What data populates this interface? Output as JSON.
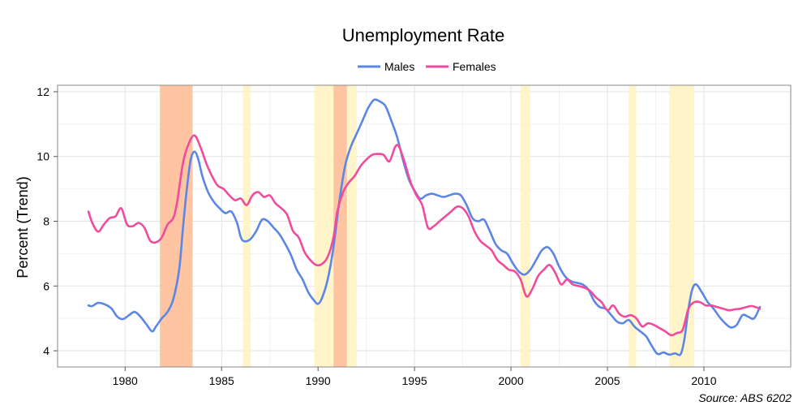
{
  "chart_data": {
    "type": "line",
    "title": "Unemployment Rate",
    "xlabel": "",
    "ylabel": "Percent (Trend)",
    "source": "Source: ABS 6202",
    "xlim": [
      1976.5,
      2014.5
    ],
    "ylim": [
      3.5,
      12.2
    ],
    "x_ticks": [
      1980,
      1985,
      1990,
      1995,
      2000,
      2005,
      2010
    ],
    "y_ticks": [
      4,
      6,
      8,
      10,
      12
    ],
    "grid": true,
    "legend": {
      "position": "top",
      "entries": [
        "Males",
        "Females"
      ]
    },
    "colors": {
      "males": "#5b86e5",
      "females": "#f04b9c",
      "recession_major": "#ffbf99",
      "recession_minor": "#fff3c4"
    },
    "shaded_periods": [
      {
        "start": 1981.8,
        "end": 1983.5,
        "kind": "major"
      },
      {
        "start": 1986.1,
        "end": 1986.5,
        "kind": "minor"
      },
      {
        "start": 1989.8,
        "end": 1990.8,
        "kind": "minor"
      },
      {
        "start": 1990.8,
        "end": 1991.5,
        "kind": "major"
      },
      {
        "start": 1991.5,
        "end": 1992.0,
        "kind": "minor"
      },
      {
        "start": 2000.5,
        "end": 2001.0,
        "kind": "minor"
      },
      {
        "start": 2006.1,
        "end": 2006.5,
        "kind": "minor"
      },
      {
        "start": 2008.2,
        "end": 2009.5,
        "kind": "minor"
      }
    ],
    "series": [
      {
        "name": "Males",
        "color": "#5b86e5",
        "points": [
          [
            1978.1,
            5.4
          ],
          [
            1978.3,
            5.38
          ],
          [
            1978.6,
            5.48
          ],
          [
            1979.0,
            5.42
          ],
          [
            1979.3,
            5.3
          ],
          [
            1979.6,
            5.05
          ],
          [
            1979.9,
            4.98
          ],
          [
            1980.2,
            5.1
          ],
          [
            1980.5,
            5.2
          ],
          [
            1980.8,
            5.05
          ],
          [
            1981.1,
            4.82
          ],
          [
            1981.4,
            4.6
          ],
          [
            1981.6,
            4.75
          ],
          [
            1981.9,
            5.0
          ],
          [
            1982.2,
            5.2
          ],
          [
            1982.5,
            5.6
          ],
          [
            1982.8,
            6.5
          ],
          [
            1983.0,
            7.8
          ],
          [
            1983.2,
            9.0
          ],
          [
            1983.4,
            9.9
          ],
          [
            1983.6,
            10.15
          ],
          [
            1983.8,
            9.9
          ],
          [
            1984.0,
            9.4
          ],
          [
            1984.3,
            8.9
          ],
          [
            1984.6,
            8.6
          ],
          [
            1984.9,
            8.4
          ],
          [
            1985.2,
            8.25
          ],
          [
            1985.5,
            8.3
          ],
          [
            1985.8,
            7.95
          ],
          [
            1986.0,
            7.5
          ],
          [
            1986.2,
            7.38
          ],
          [
            1986.5,
            7.45
          ],
          [
            1986.8,
            7.7
          ],
          [
            1987.1,
            8.05
          ],
          [
            1987.4,
            8.0
          ],
          [
            1987.7,
            7.8
          ],
          [
            1988.0,
            7.6
          ],
          [
            1988.3,
            7.3
          ],
          [
            1988.6,
            6.95
          ],
          [
            1988.9,
            6.5
          ],
          [
            1989.2,
            6.2
          ],
          [
            1989.5,
            5.8
          ],
          [
            1989.8,
            5.55
          ],
          [
            1990.0,
            5.45
          ],
          [
            1990.2,
            5.62
          ],
          [
            1990.5,
            6.2
          ],
          [
            1990.8,
            7.2
          ],
          [
            1991.1,
            8.6
          ],
          [
            1991.4,
            9.7
          ],
          [
            1991.7,
            10.3
          ],
          [
            1992.0,
            10.7
          ],
          [
            1992.3,
            11.1
          ],
          [
            1992.6,
            11.5
          ],
          [
            1992.9,
            11.75
          ],
          [
            1993.2,
            11.7
          ],
          [
            1993.5,
            11.55
          ],
          [
            1993.8,
            11.1
          ],
          [
            1994.1,
            10.6
          ],
          [
            1994.4,
            9.9
          ],
          [
            1994.7,
            9.3
          ],
          [
            1995.0,
            8.95
          ],
          [
            1995.3,
            8.7
          ],
          [
            1995.6,
            8.8
          ],
          [
            1995.9,
            8.85
          ],
          [
            1996.2,
            8.8
          ],
          [
            1996.5,
            8.75
          ],
          [
            1996.8,
            8.8
          ],
          [
            1997.1,
            8.85
          ],
          [
            1997.4,
            8.8
          ],
          [
            1997.7,
            8.5
          ],
          [
            1998.0,
            8.1
          ],
          [
            1998.3,
            8.0
          ],
          [
            1998.6,
            8.05
          ],
          [
            1998.9,
            7.7
          ],
          [
            1999.2,
            7.3
          ],
          [
            1999.5,
            7.1
          ],
          [
            1999.8,
            7.0
          ],
          [
            2000.1,
            6.7
          ],
          [
            2000.4,
            6.45
          ],
          [
            2000.7,
            6.35
          ],
          [
            2001.0,
            6.5
          ],
          [
            2001.3,
            6.8
          ],
          [
            2001.6,
            7.1
          ],
          [
            2001.9,
            7.2
          ],
          [
            2002.2,
            7.0
          ],
          [
            2002.5,
            6.6
          ],
          [
            2002.8,
            6.3
          ],
          [
            2003.1,
            6.15
          ],
          [
            2003.4,
            6.1
          ],
          [
            2003.7,
            6.05
          ],
          [
            2004.0,
            5.9
          ],
          [
            2004.3,
            5.55
          ],
          [
            2004.6,
            5.35
          ],
          [
            2004.9,
            5.3
          ],
          [
            2005.2,
            5.1
          ],
          [
            2005.5,
            4.9
          ],
          [
            2005.8,
            4.85
          ],
          [
            2006.1,
            4.95
          ],
          [
            2006.4,
            4.75
          ],
          [
            2006.7,
            4.6
          ],
          [
            2007.0,
            4.45
          ],
          [
            2007.3,
            4.15
          ],
          [
            2007.6,
            3.9
          ],
          [
            2007.9,
            3.95
          ],
          [
            2008.2,
            3.88
          ],
          [
            2008.5,
            3.92
          ],
          [
            2008.8,
            3.9
          ],
          [
            2009.0,
            4.4
          ],
          [
            2009.2,
            5.3
          ],
          [
            2009.4,
            5.9
          ],
          [
            2009.6,
            6.05
          ],
          [
            2009.9,
            5.8
          ],
          [
            2010.2,
            5.5
          ],
          [
            2010.5,
            5.3
          ],
          [
            2010.8,
            5.05
          ],
          [
            2011.1,
            4.85
          ],
          [
            2011.4,
            4.72
          ],
          [
            2011.7,
            4.8
          ],
          [
            2012.0,
            5.1
          ],
          [
            2012.3,
            5.05
          ],
          [
            2012.6,
            5.0
          ],
          [
            2012.9,
            5.35
          ]
        ]
      },
      {
        "name": "Females",
        "color": "#f04b9c",
        "points": [
          [
            1978.1,
            8.3
          ],
          [
            1978.3,
            7.95
          ],
          [
            1978.6,
            7.68
          ],
          [
            1978.9,
            7.9
          ],
          [
            1979.2,
            8.1
          ],
          [
            1979.5,
            8.15
          ],
          [
            1979.8,
            8.4
          ],
          [
            1980.1,
            7.9
          ],
          [
            1980.4,
            7.85
          ],
          [
            1980.7,
            7.95
          ],
          [
            1981.0,
            7.8
          ],
          [
            1981.3,
            7.4
          ],
          [
            1981.6,
            7.35
          ],
          [
            1981.9,
            7.5
          ],
          [
            1982.2,
            7.9
          ],
          [
            1982.5,
            8.1
          ],
          [
            1982.7,
            8.6
          ],
          [
            1983.0,
            9.8
          ],
          [
            1983.3,
            10.4
          ],
          [
            1983.6,
            10.65
          ],
          [
            1983.9,
            10.3
          ],
          [
            1984.2,
            9.8
          ],
          [
            1984.5,
            9.4
          ],
          [
            1984.8,
            9.1
          ],
          [
            1985.1,
            9.0
          ],
          [
            1985.4,
            8.8
          ],
          [
            1985.7,
            8.65
          ],
          [
            1986.0,
            8.7
          ],
          [
            1986.3,
            8.5
          ],
          [
            1986.6,
            8.8
          ],
          [
            1986.9,
            8.9
          ],
          [
            1987.2,
            8.75
          ],
          [
            1987.5,
            8.8
          ],
          [
            1987.8,
            8.55
          ],
          [
            1988.1,
            8.4
          ],
          [
            1988.4,
            8.2
          ],
          [
            1988.7,
            7.7
          ],
          [
            1989.0,
            7.5
          ],
          [
            1989.3,
            7.05
          ],
          [
            1989.6,
            6.8
          ],
          [
            1989.9,
            6.65
          ],
          [
            1990.2,
            6.68
          ],
          [
            1990.5,
            6.9
          ],
          [
            1990.8,
            7.5
          ],
          [
            1991.0,
            8.3
          ],
          [
            1991.3,
            8.9
          ],
          [
            1991.6,
            9.2
          ],
          [
            1991.9,
            9.4
          ],
          [
            1992.2,
            9.7
          ],
          [
            1992.5,
            9.9
          ],
          [
            1992.8,
            10.05
          ],
          [
            1993.1,
            10.08
          ],
          [
            1993.4,
            10.05
          ],
          [
            1993.7,
            9.85
          ],
          [
            1994.0,
            10.3
          ],
          [
            1994.2,
            10.3
          ],
          [
            1994.5,
            9.8
          ],
          [
            1994.8,
            9.2
          ],
          [
            1995.1,
            8.8
          ],
          [
            1995.4,
            8.5
          ],
          [
            1995.7,
            7.8
          ],
          [
            1996.0,
            7.85
          ],
          [
            1996.3,
            8.0
          ],
          [
            1996.6,
            8.15
          ],
          [
            1996.9,
            8.3
          ],
          [
            1997.2,
            8.45
          ],
          [
            1997.5,
            8.4
          ],
          [
            1997.8,
            8.15
          ],
          [
            1998.1,
            7.7
          ],
          [
            1998.4,
            7.4
          ],
          [
            1998.7,
            7.25
          ],
          [
            1999.0,
            7.1
          ],
          [
            1999.3,
            6.8
          ],
          [
            1999.6,
            6.65
          ],
          [
            1999.9,
            6.5
          ],
          [
            2000.2,
            6.45
          ],
          [
            2000.5,
            6.2
          ],
          [
            2000.8,
            5.68
          ],
          [
            2001.1,
            5.9
          ],
          [
            2001.4,
            6.3
          ],
          [
            2001.7,
            6.5
          ],
          [
            2002.0,
            6.65
          ],
          [
            2002.3,
            6.4
          ],
          [
            2002.6,
            6.05
          ],
          [
            2002.9,
            6.2
          ],
          [
            2003.2,
            6.05
          ],
          [
            2003.5,
            6.0
          ],
          [
            2003.8,
            5.95
          ],
          [
            2004.1,
            5.85
          ],
          [
            2004.4,
            5.65
          ],
          [
            2004.7,
            5.5
          ],
          [
            2005.0,
            5.25
          ],
          [
            2005.3,
            5.4
          ],
          [
            2005.6,
            5.15
          ],
          [
            2005.9,
            5.05
          ],
          [
            2006.2,
            5.1
          ],
          [
            2006.5,
            5.0
          ],
          [
            2006.8,
            4.75
          ],
          [
            2007.1,
            4.85
          ],
          [
            2007.4,
            4.8
          ],
          [
            2007.7,
            4.7
          ],
          [
            2008.0,
            4.6
          ],
          [
            2008.3,
            4.48
          ],
          [
            2008.6,
            4.55
          ],
          [
            2008.9,
            4.65
          ],
          [
            2009.2,
            5.3
          ],
          [
            2009.5,
            5.5
          ],
          [
            2009.8,
            5.5
          ],
          [
            2010.1,
            5.4
          ],
          [
            2010.4,
            5.4
          ],
          [
            2010.7,
            5.35
          ],
          [
            2011.0,
            5.3
          ],
          [
            2011.3,
            5.25
          ],
          [
            2011.6,
            5.28
          ],
          [
            2011.9,
            5.3
          ],
          [
            2012.2,
            5.35
          ],
          [
            2012.5,
            5.38
          ],
          [
            2012.9,
            5.3
          ]
        ]
      }
    ]
  }
}
